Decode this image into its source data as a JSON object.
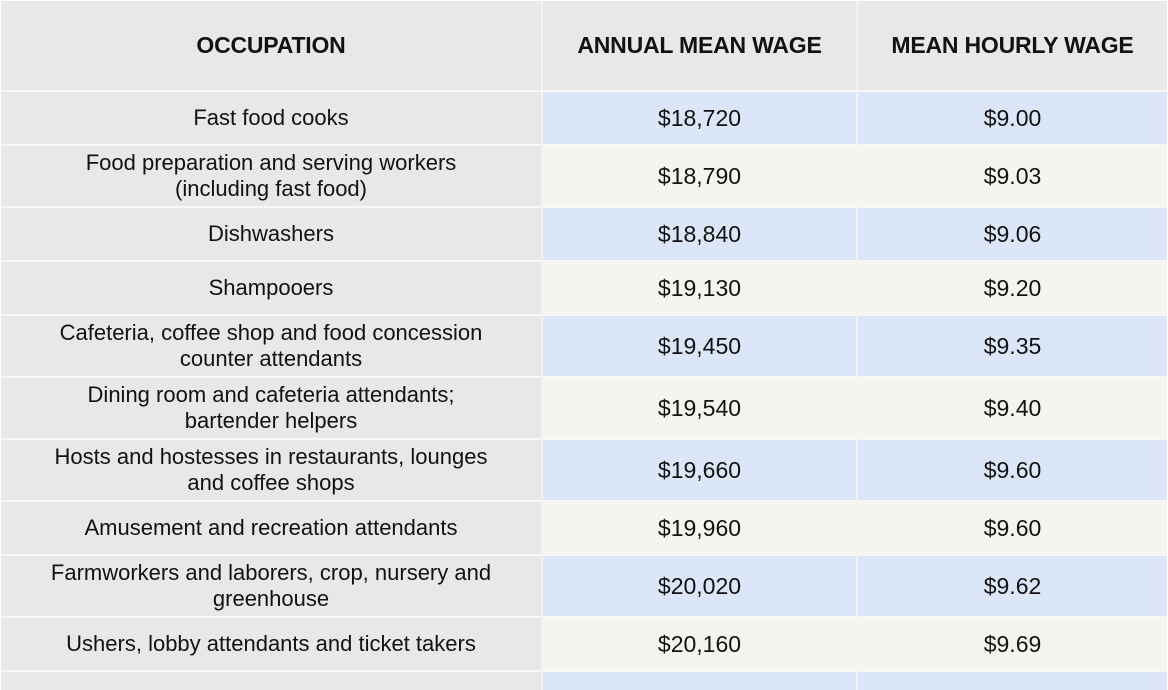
{
  "table": {
    "columns": [
      {
        "key": "occupation",
        "label": "OCCUPATION"
      },
      {
        "key": "annual",
        "label": "ANNUAL MEAN WAGE"
      },
      {
        "key": "hourly",
        "label": "MEAN HOURLY WAGE"
      }
    ],
    "rows": [
      {
        "occupation": "Fast food cooks",
        "annual": "$18,720",
        "hourly": "$9.00"
      },
      {
        "occupation": "Food preparation and serving workers\n(including fast food)",
        "annual": "$18,790",
        "hourly": "$9.03"
      },
      {
        "occupation": "Dishwashers",
        "annual": "$18,840",
        "hourly": "$9.06"
      },
      {
        "occupation": "Shampooers",
        "annual": "$19,130",
        "hourly": "$9.20"
      },
      {
        "occupation": "Cafeteria, coffee shop and food concession\ncounter attendants",
        "annual": "$19,450",
        "hourly": "$9.35"
      },
      {
        "occupation": "Dining room and cafeteria attendants;\nbartender helpers",
        "annual": "$19,540",
        "hourly": "$9.40"
      },
      {
        "occupation": "Hosts and hostesses in restaurants, lounges\nand coffee shops",
        "annual": "$19,660",
        "hourly": "$9.60"
      },
      {
        "occupation": "Amusement and recreation attendants",
        "annual": "$19,960",
        "hourly": "$9.60"
      },
      {
        "occupation": "Farmworkers and laborers, crop, nursery and\ngreenhouse",
        "annual": "$20,020",
        "hourly": "$9.62"
      },
      {
        "occupation": "Ushers, lobby attendants and ticket takers",
        "annual": "$20,160",
        "hourly": "$9.69"
      }
    ]
  },
  "colors": {
    "header_bg": "#e8e8e8",
    "occupation_bg": "#e8e8e8",
    "row_blue": "#dbe6f8",
    "row_cream": "#f6f4ee",
    "text": "#121212",
    "page_bg": "#ffffff"
  },
  "chart_data": {
    "type": "table",
    "title": "",
    "columns": [
      "OCCUPATION",
      "ANNUAL MEAN WAGE",
      "MEAN HOURLY WAGE"
    ],
    "categories": [
      "Fast food cooks",
      "Food preparation and serving workers (including fast food)",
      "Dishwashers",
      "Shampooers",
      "Cafeteria, coffee shop and food concession counter attendants",
      "Dining room and cafeteria attendants; bartender helpers",
      "Hosts and hostesses in restaurants, lounges and coffee shops",
      "Amusement and recreation attendants",
      "Farmworkers and laborers, crop, nursery and greenhouse",
      "Ushers, lobby attendants and ticket takers"
    ],
    "series": [
      {
        "name": "Annual mean wage (USD)",
        "values": [
          18720,
          18790,
          18840,
          19130,
          19450,
          19540,
          19660,
          19960,
          20020,
          20160
        ]
      },
      {
        "name": "Mean hourly wage (USD)",
        "values": [
          9.0,
          9.03,
          9.06,
          9.2,
          9.35,
          9.4,
          9.6,
          9.6,
          9.62,
          9.69
        ]
      }
    ],
    "layout_hints": {
      "row_striping": [
        "blue",
        "cream"
      ],
      "occupation_column_bg": "gray",
      "all_text_centered": true
    }
  }
}
